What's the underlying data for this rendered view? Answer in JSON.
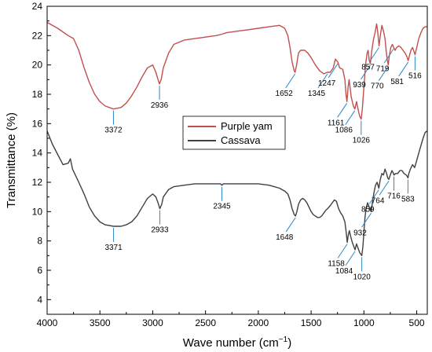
{
  "chart_data": {
    "type": "line",
    "xlabel": "Wave number (cm",
    "xlabel_sup": "−1",
    "xlabel_end": ")",
    "ylabel": "Transmittance (%)",
    "xlim": [
      4000,
      400
    ],
    "ylim": [
      3,
      24
    ],
    "x_reversed": true,
    "x_ticks": [
      "4000",
      "3500",
      "3000",
      "2500",
      "2000",
      "1500",
      "1000",
      "500"
    ],
    "y_ticks": [
      "4",
      "6",
      "8",
      "10",
      "12",
      "14",
      "16",
      "18",
      "20",
      "22",
      "24"
    ],
    "legend_position": "middle-left",
    "series": [
      {
        "name": "Purple yam",
        "color": "#c0504d",
        "points": [
          [
            4000,
            22.9
          ],
          [
            3900,
            22.5
          ],
          [
            3800,
            22.0
          ],
          [
            3750,
            21.8
          ],
          [
            3700,
            21.0
          ],
          [
            3650,
            19.8
          ],
          [
            3600,
            18.8
          ],
          [
            3550,
            18.0
          ],
          [
            3500,
            17.5
          ],
          [
            3450,
            17.2
          ],
          [
            3372,
            17.0
          ],
          [
            3300,
            17.1
          ],
          [
            3250,
            17.4
          ],
          [
            3200,
            17.9
          ],
          [
            3150,
            18.5
          ],
          [
            3100,
            19.2
          ],
          [
            3050,
            19.8
          ],
          [
            3000,
            20.0
          ],
          [
            2970,
            19.5
          ],
          [
            2950,
            19.0
          ],
          [
            2936,
            18.7
          ],
          [
            2920,
            19.0
          ],
          [
            2900,
            19.8
          ],
          [
            2850,
            20.8
          ],
          [
            2800,
            21.4
          ],
          [
            2700,
            21.7
          ],
          [
            2600,
            21.8
          ],
          [
            2500,
            21.9
          ],
          [
            2400,
            22.0
          ],
          [
            2345,
            22.1
          ],
          [
            2300,
            22.2
          ],
          [
            2200,
            22.3
          ],
          [
            2100,
            22.4
          ],
          [
            2000,
            22.5
          ],
          [
            1900,
            22.6
          ],
          [
            1800,
            22.7
          ],
          [
            1750,
            22.5
          ],
          [
            1720,
            22.0
          ],
          [
            1700,
            21.2
          ],
          [
            1680,
            20.2
          ],
          [
            1660,
            19.6
          ],
          [
            1652,
            19.5
          ],
          [
            1640,
            19.9
          ],
          [
            1620,
            20.8
          ],
          [
            1600,
            21.0
          ],
          [
            1560,
            21.0
          ],
          [
            1530,
            20.8
          ],
          [
            1500,
            20.5
          ],
          [
            1460,
            20.0
          ],
          [
            1420,
            19.6
          ],
          [
            1380,
            19.4
          ],
          [
            1345,
            19.5
          ],
          [
            1320,
            19.5
          ],
          [
            1290,
            19.8
          ],
          [
            1270,
            20.4
          ],
          [
            1247,
            20.2
          ],
          [
            1230,
            19.8
          ],
          [
            1200,
            19.7
          ],
          [
            1180,
            19.0
          ],
          [
            1170,
            18.0
          ],
          [
            1161,
            17.5
          ],
          [
            1150,
            18.5
          ],
          [
            1140,
            19.0
          ],
          [
            1120,
            17.8
          ],
          [
            1100,
            17.2
          ],
          [
            1086,
            17.0
          ],
          [
            1070,
            17.5
          ],
          [
            1050,
            16.8
          ],
          [
            1040,
            16.5
          ],
          [
            1026,
            16.3
          ],
          [
            1015,
            17.0
          ],
          [
            1000,
            18.5
          ],
          [
            985,
            20.0
          ],
          [
            970,
            20.8
          ],
          [
            960,
            21.0
          ],
          [
            950,
            20.3
          ],
          [
            939,
            20.1
          ],
          [
            925,
            21.0
          ],
          [
            910,
            21.7
          ],
          [
            895,
            22.2
          ],
          [
            880,
            22.8
          ],
          [
            870,
            22.3
          ],
          [
            857,
            21.3
          ],
          [
            845,
            22.0
          ],
          [
            830,
            22.7
          ],
          [
            815,
            22.3
          ],
          [
            800,
            21.8
          ],
          [
            790,
            21.0
          ],
          [
            780,
            20.4
          ],
          [
            770,
            20.0
          ],
          [
            760,
            20.6
          ],
          [
            745,
            21.2
          ],
          [
            730,
            21.4
          ],
          [
            719,
            21.2
          ],
          [
            705,
            21.0
          ],
          [
            690,
            21.2
          ],
          [
            670,
            21.3
          ],
          [
            650,
            21.2
          ],
          [
            630,
            21.0
          ],
          [
            610,
            20.8
          ],
          [
            595,
            20.6
          ],
          [
            581,
            20.3
          ],
          [
            570,
            20.6
          ],
          [
            555,
            21.0
          ],
          [
            540,
            21.2
          ],
          [
            525,
            20.9
          ],
          [
            516,
            20.7
          ],
          [
            500,
            21.2
          ],
          [
            480,
            21.8
          ],
          [
            460,
            22.2
          ],
          [
            440,
            22.5
          ],
          [
            420,
            22.6
          ],
          [
            400,
            22.6
          ]
        ]
      },
      {
        "name": "Cassava",
        "color": "#404040",
        "points": [
          [
            4000,
            15.5
          ],
          [
            3950,
            14.6
          ],
          [
            3900,
            13.9
          ],
          [
            3850,
            13.2
          ],
          [
            3800,
            13.3
          ],
          [
            3780,
            13.6
          ],
          [
            3760,
            12.9
          ],
          [
            3740,
            12.6
          ],
          [
            3700,
            12.0
          ],
          [
            3650,
            11.2
          ],
          [
            3600,
            10.3
          ],
          [
            3550,
            9.7
          ],
          [
            3500,
            9.3
          ],
          [
            3450,
            9.1
          ],
          [
            3371,
            9.0
          ],
          [
            3300,
            9.0
          ],
          [
            3250,
            9.1
          ],
          [
            3200,
            9.3
          ],
          [
            3150,
            9.7
          ],
          [
            3100,
            10.3
          ],
          [
            3050,
            10.9
          ],
          [
            3000,
            11.2
          ],
          [
            2970,
            11.0
          ],
          [
            2950,
            10.6
          ],
          [
            2933,
            10.2
          ],
          [
            2915,
            10.5
          ],
          [
            2900,
            11.0
          ],
          [
            2850,
            11.5
          ],
          [
            2800,
            11.7
          ],
          [
            2700,
            11.8
          ],
          [
            2600,
            11.9
          ],
          [
            2500,
            11.9
          ],
          [
            2400,
            11.9
          ],
          [
            2360,
            11.9
          ],
          [
            2345,
            11.8
          ],
          [
            2330,
            11.9
          ],
          [
            2300,
            11.9
          ],
          [
            2200,
            11.9
          ],
          [
            2100,
            11.9
          ],
          [
            2000,
            11.9
          ],
          [
            1900,
            11.8
          ],
          [
            1850,
            11.7
          ],
          [
            1800,
            11.6
          ],
          [
            1750,
            11.4
          ],
          [
            1720,
            11.2
          ],
          [
            1700,
            10.8
          ],
          [
            1680,
            10.2
          ],
          [
            1660,
            9.8
          ],
          [
            1648,
            9.7
          ],
          [
            1635,
            10.0
          ],
          [
            1620,
            10.5
          ],
          [
            1600,
            10.8
          ],
          [
            1580,
            10.9
          ],
          [
            1560,
            10.8
          ],
          [
            1540,
            10.6
          ],
          [
            1520,
            10.3
          ],
          [
            1500,
            10.0
          ],
          [
            1480,
            9.8
          ],
          [
            1460,
            9.7
          ],
          [
            1440,
            9.6
          ],
          [
            1420,
            9.6
          ],
          [
            1400,
            9.7
          ],
          [
            1380,
            9.9
          ],
          [
            1360,
            10.1
          ],
          [
            1345,
            10.2
          ],
          [
            1320,
            10.4
          ],
          [
            1300,
            10.6
          ],
          [
            1280,
            10.8
          ],
          [
            1260,
            10.7
          ],
          [
            1240,
            10.2
          ],
          [
            1220,
            9.9
          ],
          [
            1200,
            9.7
          ],
          [
            1180,
            9.3
          ],
          [
            1170,
            8.7
          ],
          [
            1158,
            7.9
          ],
          [
            1148,
            8.4
          ],
          [
            1138,
            8.7
          ],
          [
            1125,
            8.3
          ],
          [
            1110,
            7.9
          ],
          [
            1095,
            7.6
          ],
          [
            1084,
            7.4
          ],
          [
            1070,
            7.8
          ],
          [
            1055,
            7.5
          ],
          [
            1040,
            7.2
          ],
          [
            1030,
            7.1
          ],
          [
            1020,
            7.0
          ],
          [
            1010,
            7.6
          ],
          [
            1000,
            8.6
          ],
          [
            990,
            9.6
          ],
          [
            980,
            10.2
          ],
          [
            965,
            10.6
          ],
          [
            950,
            10.3
          ],
          [
            932,
            10.0
          ],
          [
            920,
            10.6
          ],
          [
            905,
            11.3
          ],
          [
            890,
            11.8
          ],
          [
            875,
            12.0
          ],
          [
            859,
            11.6
          ],
          [
            845,
            12.2
          ],
          [
            830,
            12.6
          ],
          [
            815,
            12.5
          ],
          [
            800,
            12.9
          ],
          [
            785,
            12.6
          ],
          [
            775,
            12.3
          ],
          [
            764,
            12.2
          ],
          [
            750,
            12.5
          ],
          [
            735,
            12.8
          ],
          [
            720,
            12.6
          ],
          [
            716,
            12.5
          ],
          [
            700,
            12.6
          ],
          [
            680,
            12.6
          ],
          [
            660,
            12.8
          ],
          [
            640,
            12.8
          ],
          [
            620,
            12.6
          ],
          [
            600,
            12.5
          ],
          [
            590,
            12.4
          ],
          [
            583,
            12.3
          ],
          [
            575,
            12.6
          ],
          [
            560,
            12.9
          ],
          [
            540,
            13.2
          ],
          [
            520,
            13.0
          ],
          [
            500,
            13.5
          ],
          [
            480,
            14.0
          ],
          [
            460,
            14.5
          ],
          [
            440,
            15.0
          ],
          [
            420,
            15.4
          ],
          [
            400,
            15.5
          ]
        ]
      }
    ],
    "annotations": [
      {
        "text": "3372",
        "x": 3372,
        "y": 17.0,
        "series": 0,
        "dir": "down"
      },
      {
        "text": "2936",
        "x": 2936,
        "y": 18.7,
        "series": 0,
        "dir": "down"
      },
      {
        "text": "1652",
        "x": 1652,
        "y": 19.5,
        "series": 0,
        "dir": "down-left"
      },
      {
        "text": "1345",
        "x": 1345,
        "y": 19.5,
        "series": 0,
        "dir": "down-left"
      },
      {
        "text": "1247",
        "x": 1247,
        "y": 20.2,
        "series": 0,
        "dir": "down-left"
      },
      {
        "text": "1161",
        "x": 1161,
        "y": 17.5,
        "series": 0,
        "dir": "down-left"
      },
      {
        "text": "1086",
        "x": 1086,
        "y": 17.0,
        "series": 0,
        "dir": "down-left"
      },
      {
        "text": "1026",
        "x": 1026,
        "y": 16.3,
        "series": 0,
        "dir": "down"
      },
      {
        "text": "939",
        "x": 939,
        "y": 20.1,
        "series": 0,
        "dir": "down-left"
      },
      {
        "text": "857",
        "x": 857,
        "y": 21.3,
        "series": 0,
        "dir": "down-left"
      },
      {
        "text": "770",
        "x": 770,
        "y": 20.0,
        "series": 0,
        "dir": "down-left"
      },
      {
        "text": "719",
        "x": 719,
        "y": 21.2,
        "series": 0,
        "dir": "down-left"
      },
      {
        "text": "581",
        "x": 581,
        "y": 20.3,
        "series": 0,
        "dir": "down-left"
      },
      {
        "text": "516",
        "x": 516,
        "y": 20.7,
        "series": 0,
        "dir": "down"
      },
      {
        "text": "3371",
        "x": 3371,
        "y": 9.0,
        "series": 1,
        "dir": "down"
      },
      {
        "text": "2933",
        "x": 2933,
        "y": 10.2,
        "series": 1,
        "dir": "down"
      },
      {
        "text": "2345",
        "x": 2345,
        "y": 11.8,
        "series": 1,
        "dir": "down"
      },
      {
        "text": "1648",
        "x": 1648,
        "y": 9.7,
        "series": 1,
        "dir": "down-left"
      },
      {
        "text": "1158",
        "x": 1158,
        "y": 7.9,
        "series": 1,
        "dir": "down-left"
      },
      {
        "text": "1084",
        "x": 1084,
        "y": 7.4,
        "series": 1,
        "dir": "down-left"
      },
      {
        "text": "1020",
        "x": 1020,
        "y": 7.0,
        "series": 1,
        "dir": "down"
      },
      {
        "text": "932",
        "x": 932,
        "y": 10.0,
        "series": 1,
        "dir": "down-left"
      },
      {
        "text": "859",
        "x": 859,
        "y": 11.6,
        "series": 1,
        "dir": "down-left"
      },
      {
        "text": "764",
        "x": 764,
        "y": 12.2,
        "series": 1,
        "dir": "down-left"
      },
      {
        "text": "716",
        "x": 716,
        "y": 12.5,
        "series": 1,
        "dir": "down"
      },
      {
        "text": "583",
        "x": 583,
        "y": 12.3,
        "series": 1,
        "dir": "down"
      }
    ]
  }
}
